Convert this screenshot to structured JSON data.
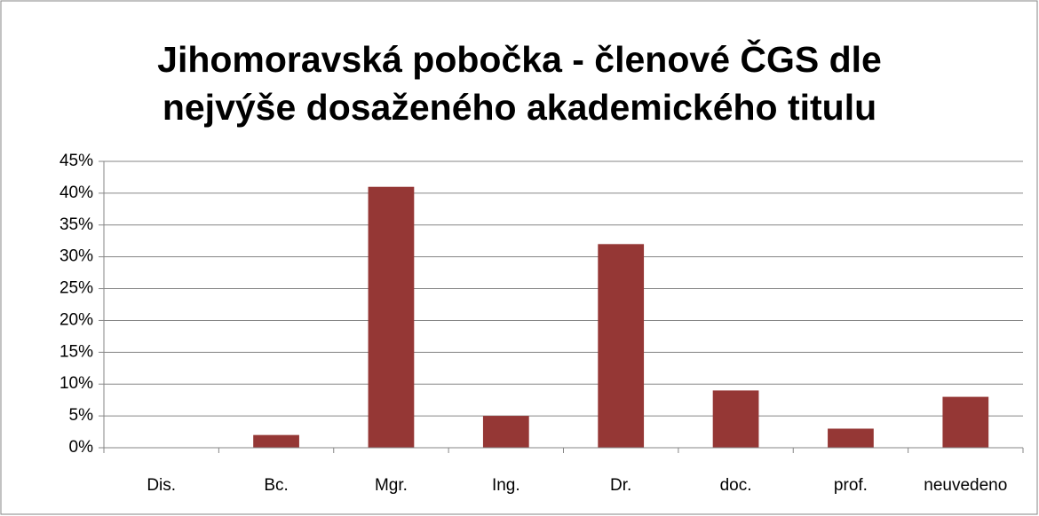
{
  "chart_data": {
    "type": "bar",
    "title": "Jihomoravská pobočka - členové ČGS dle nejvýše dosaženého akademického titulu",
    "categories": [
      "Dis.",
      "Bc.",
      "Mgr.",
      "Ing.",
      "Dr.",
      "doc.",
      "prof.",
      "neuvedeno"
    ],
    "values": [
      0,
      2,
      41,
      5,
      32,
      9,
      3,
      8
    ],
    "color": "#953735",
    "ylim": [
      0,
      45
    ],
    "yticks": [
      {
        "value": 0,
        "label": "0%"
      },
      {
        "value": 5,
        "label": "5%"
      },
      {
        "value": 10,
        "label": "10%"
      },
      {
        "value": 15,
        "label": "15%"
      },
      {
        "value": 20,
        "label": "20%"
      },
      {
        "value": 25,
        "label": "25%"
      },
      {
        "value": 30,
        "label": "30%"
      },
      {
        "value": 35,
        "label": "35%"
      },
      {
        "value": 40,
        "label": "40%"
      },
      {
        "value": 45,
        "label": "45%"
      }
    ],
    "grid": true
  }
}
